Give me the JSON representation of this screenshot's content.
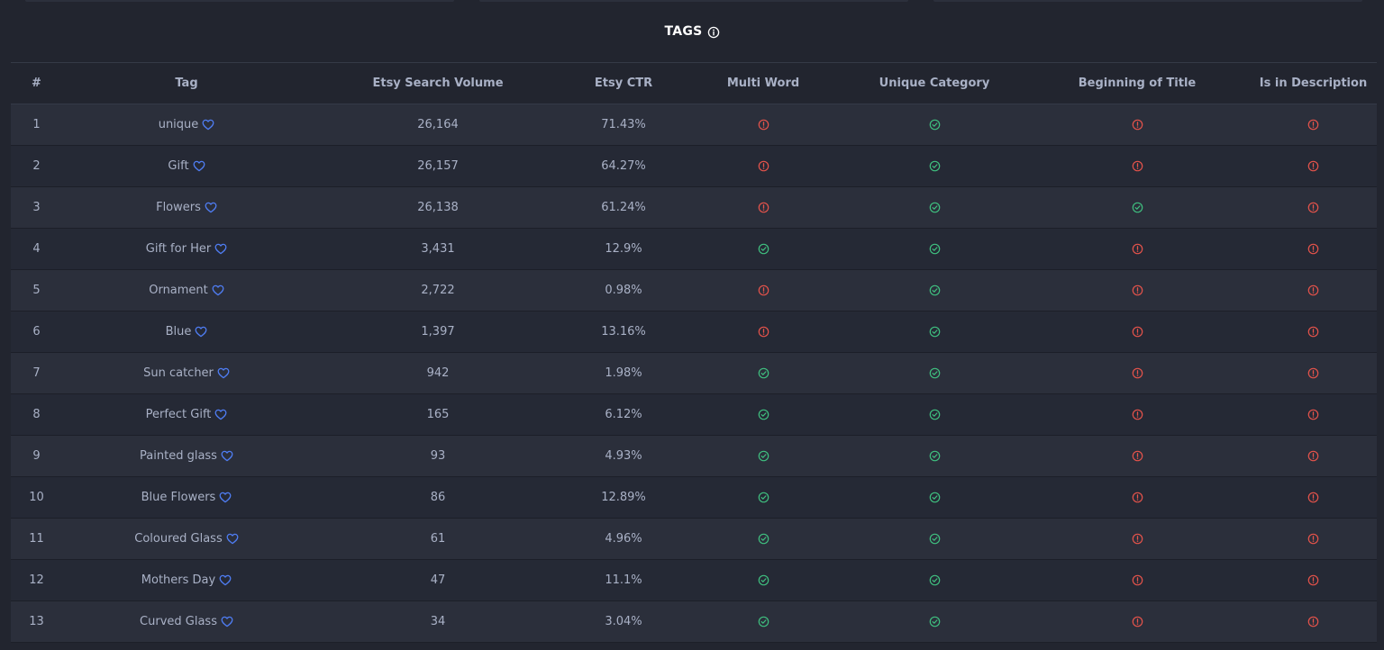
{
  "section": {
    "title": "TAGS",
    "info_icon": "info-circle-icon"
  },
  "colors": {
    "background": "#22252f",
    "row_odd": "#2b2f3b",
    "row_even": "#252935",
    "text": "#a9b1c6",
    "title": "#ffffff",
    "ok": "#3fbf7f",
    "warn": "#e5534b",
    "heart": "#4f7df3"
  },
  "table": {
    "headers": [
      "#",
      "Tag",
      "Etsy Search Volume",
      "Etsy CTR",
      "Multi Word",
      "Unique Category",
      "Beginning of Title",
      "Is in Description"
    ],
    "rows": [
      {
        "num": "1",
        "tag": "unique",
        "volume": "26,164",
        "ctr": "71.43%",
        "multi_word": "warn",
        "unique_category": "ok",
        "beginning_of_title": "warn",
        "in_description": "warn"
      },
      {
        "num": "2",
        "tag": "Gift",
        "volume": "26,157",
        "ctr": "64.27%",
        "multi_word": "warn",
        "unique_category": "ok",
        "beginning_of_title": "warn",
        "in_description": "warn"
      },
      {
        "num": "3",
        "tag": "Flowers",
        "volume": "26,138",
        "ctr": "61.24%",
        "multi_word": "warn",
        "unique_category": "ok",
        "beginning_of_title": "ok",
        "in_description": "warn"
      },
      {
        "num": "4",
        "tag": "Gift for Her",
        "volume": "3,431",
        "ctr": "12.9%",
        "multi_word": "ok",
        "unique_category": "ok",
        "beginning_of_title": "warn",
        "in_description": "warn"
      },
      {
        "num": "5",
        "tag": "Ornament",
        "volume": "2,722",
        "ctr": "0.98%",
        "multi_word": "warn",
        "unique_category": "ok",
        "beginning_of_title": "warn",
        "in_description": "warn"
      },
      {
        "num": "6",
        "tag": "Blue",
        "volume": "1,397",
        "ctr": "13.16%",
        "multi_word": "warn",
        "unique_category": "ok",
        "beginning_of_title": "warn",
        "in_description": "warn"
      },
      {
        "num": "7",
        "tag": "Sun catcher",
        "volume": "942",
        "ctr": "1.98%",
        "multi_word": "ok",
        "unique_category": "ok",
        "beginning_of_title": "warn",
        "in_description": "warn"
      },
      {
        "num": "8",
        "tag": "Perfect Gift",
        "volume": "165",
        "ctr": "6.12%",
        "multi_word": "ok",
        "unique_category": "ok",
        "beginning_of_title": "warn",
        "in_description": "warn"
      },
      {
        "num": "9",
        "tag": "Painted glass",
        "volume": "93",
        "ctr": "4.93%",
        "multi_word": "ok",
        "unique_category": "ok",
        "beginning_of_title": "warn",
        "in_description": "warn"
      },
      {
        "num": "10",
        "tag": "Blue Flowers",
        "volume": "86",
        "ctr": "12.89%",
        "multi_word": "ok",
        "unique_category": "ok",
        "beginning_of_title": "warn",
        "in_description": "warn"
      },
      {
        "num": "11",
        "tag": "Coloured Glass",
        "volume": "61",
        "ctr": "4.96%",
        "multi_word": "ok",
        "unique_category": "ok",
        "beginning_of_title": "warn",
        "in_description": "warn"
      },
      {
        "num": "12",
        "tag": "Mothers Day",
        "volume": "47",
        "ctr": "11.1%",
        "multi_word": "ok",
        "unique_category": "ok",
        "beginning_of_title": "warn",
        "in_description": "warn"
      },
      {
        "num": "13",
        "tag": "Curved Glass",
        "volume": "34",
        "ctr": "3.04%",
        "multi_word": "ok",
        "unique_category": "ok",
        "beginning_of_title": "warn",
        "in_description": "warn"
      }
    ]
  }
}
